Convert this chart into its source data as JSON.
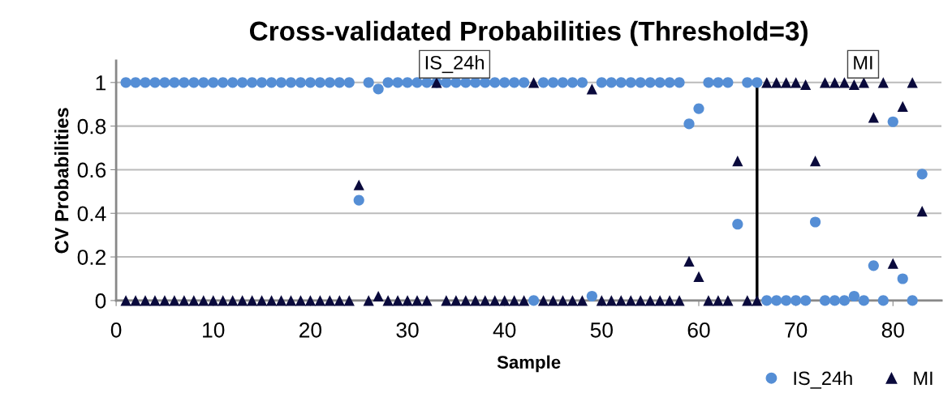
{
  "chart_data": {
    "type": "scatter",
    "title": "Cross-validated Probabilities (Threshold=3)",
    "xlabel": "Sample",
    "ylabel": "CV Probabilities",
    "x": [
      1,
      2,
      3,
      4,
      5,
      6,
      7,
      8,
      9,
      10,
      11,
      12,
      13,
      14,
      15,
      16,
      17,
      18,
      19,
      20,
      21,
      22,
      23,
      24,
      25,
      26,
      27,
      28,
      29,
      30,
      31,
      32,
      33,
      34,
      35,
      36,
      37,
      38,
      39,
      40,
      41,
      42,
      43,
      44,
      45,
      46,
      47,
      48,
      49,
      50,
      51,
      52,
      53,
      54,
      55,
      56,
      57,
      58,
      59,
      60,
      61,
      62,
      63,
      64,
      65,
      66,
      67,
      68,
      69,
      70,
      71,
      72,
      73,
      74,
      75,
      76,
      77,
      78,
      79,
      80,
      81,
      82,
      83
    ],
    "series": [
      {
        "name": "IS_24h",
        "color": "#558ed5",
        "marker": "circle",
        "values": [
          1,
          1,
          1,
          1,
          1,
          1,
          1,
          1,
          1,
          1,
          1,
          1,
          1,
          1,
          1,
          1,
          1,
          1,
          1,
          1,
          1,
          1,
          1,
          1,
          0.46,
          1,
          0.97,
          1,
          1,
          1,
          1,
          1,
          1,
          1,
          1,
          1,
          1,
          1,
          1,
          1,
          1,
          1,
          0,
          1,
          1,
          1,
          1,
          1,
          0.02,
          1,
          1,
          1,
          1,
          1,
          1,
          1,
          1,
          1,
          0.81,
          0.88,
          1,
          1,
          1,
          0.35,
          1,
          1,
          0,
          0,
          0,
          0,
          0,
          0.36,
          0,
          0,
          0,
          0.02,
          0,
          0.16,
          0,
          0.82,
          0.1,
          0,
          0.58
        ]
      },
      {
        "name": "MI",
        "color": "#0a0a3c",
        "marker": "triangle",
        "values": [
          0,
          0,
          0,
          0,
          0,
          0,
          0,
          0,
          0,
          0,
          0,
          0,
          0,
          0,
          0,
          0,
          0,
          0,
          0,
          0,
          0,
          0,
          0,
          0,
          0.53,
          0,
          0.02,
          0,
          0,
          0,
          0,
          0,
          1,
          0,
          0,
          0,
          0,
          0,
          0,
          0,
          0,
          0,
          1,
          0,
          0,
          0,
          0,
          0,
          0.97,
          0,
          0,
          0,
          0,
          0,
          0,
          0,
          0,
          0,
          0.18,
          0.11,
          0,
          0,
          0,
          0.64,
          0,
          0,
          1,
          1,
          1,
          1,
          0.99,
          0.64,
          1,
          1,
          1,
          0.99,
          1,
          0.84,
          1,
          0.17,
          0.89,
          1,
          0.41
        ]
      }
    ],
    "xlim": [
      0,
      85
    ],
    "xticks": [
      0,
      10,
      20,
      30,
      40,
      50,
      60,
      70,
      80
    ],
    "ylim": [
      0,
      1.1
    ],
    "yticks": [
      0,
      0.2,
      0.4,
      0.6,
      0.8,
      1
    ],
    "grid": "y",
    "legend": "bottom right",
    "ref_lines": [
      {
        "axis": "x",
        "value": 66,
        "color": "#000000"
      }
    ],
    "annotations": [
      "IS_24h",
      "MI"
    ]
  }
}
